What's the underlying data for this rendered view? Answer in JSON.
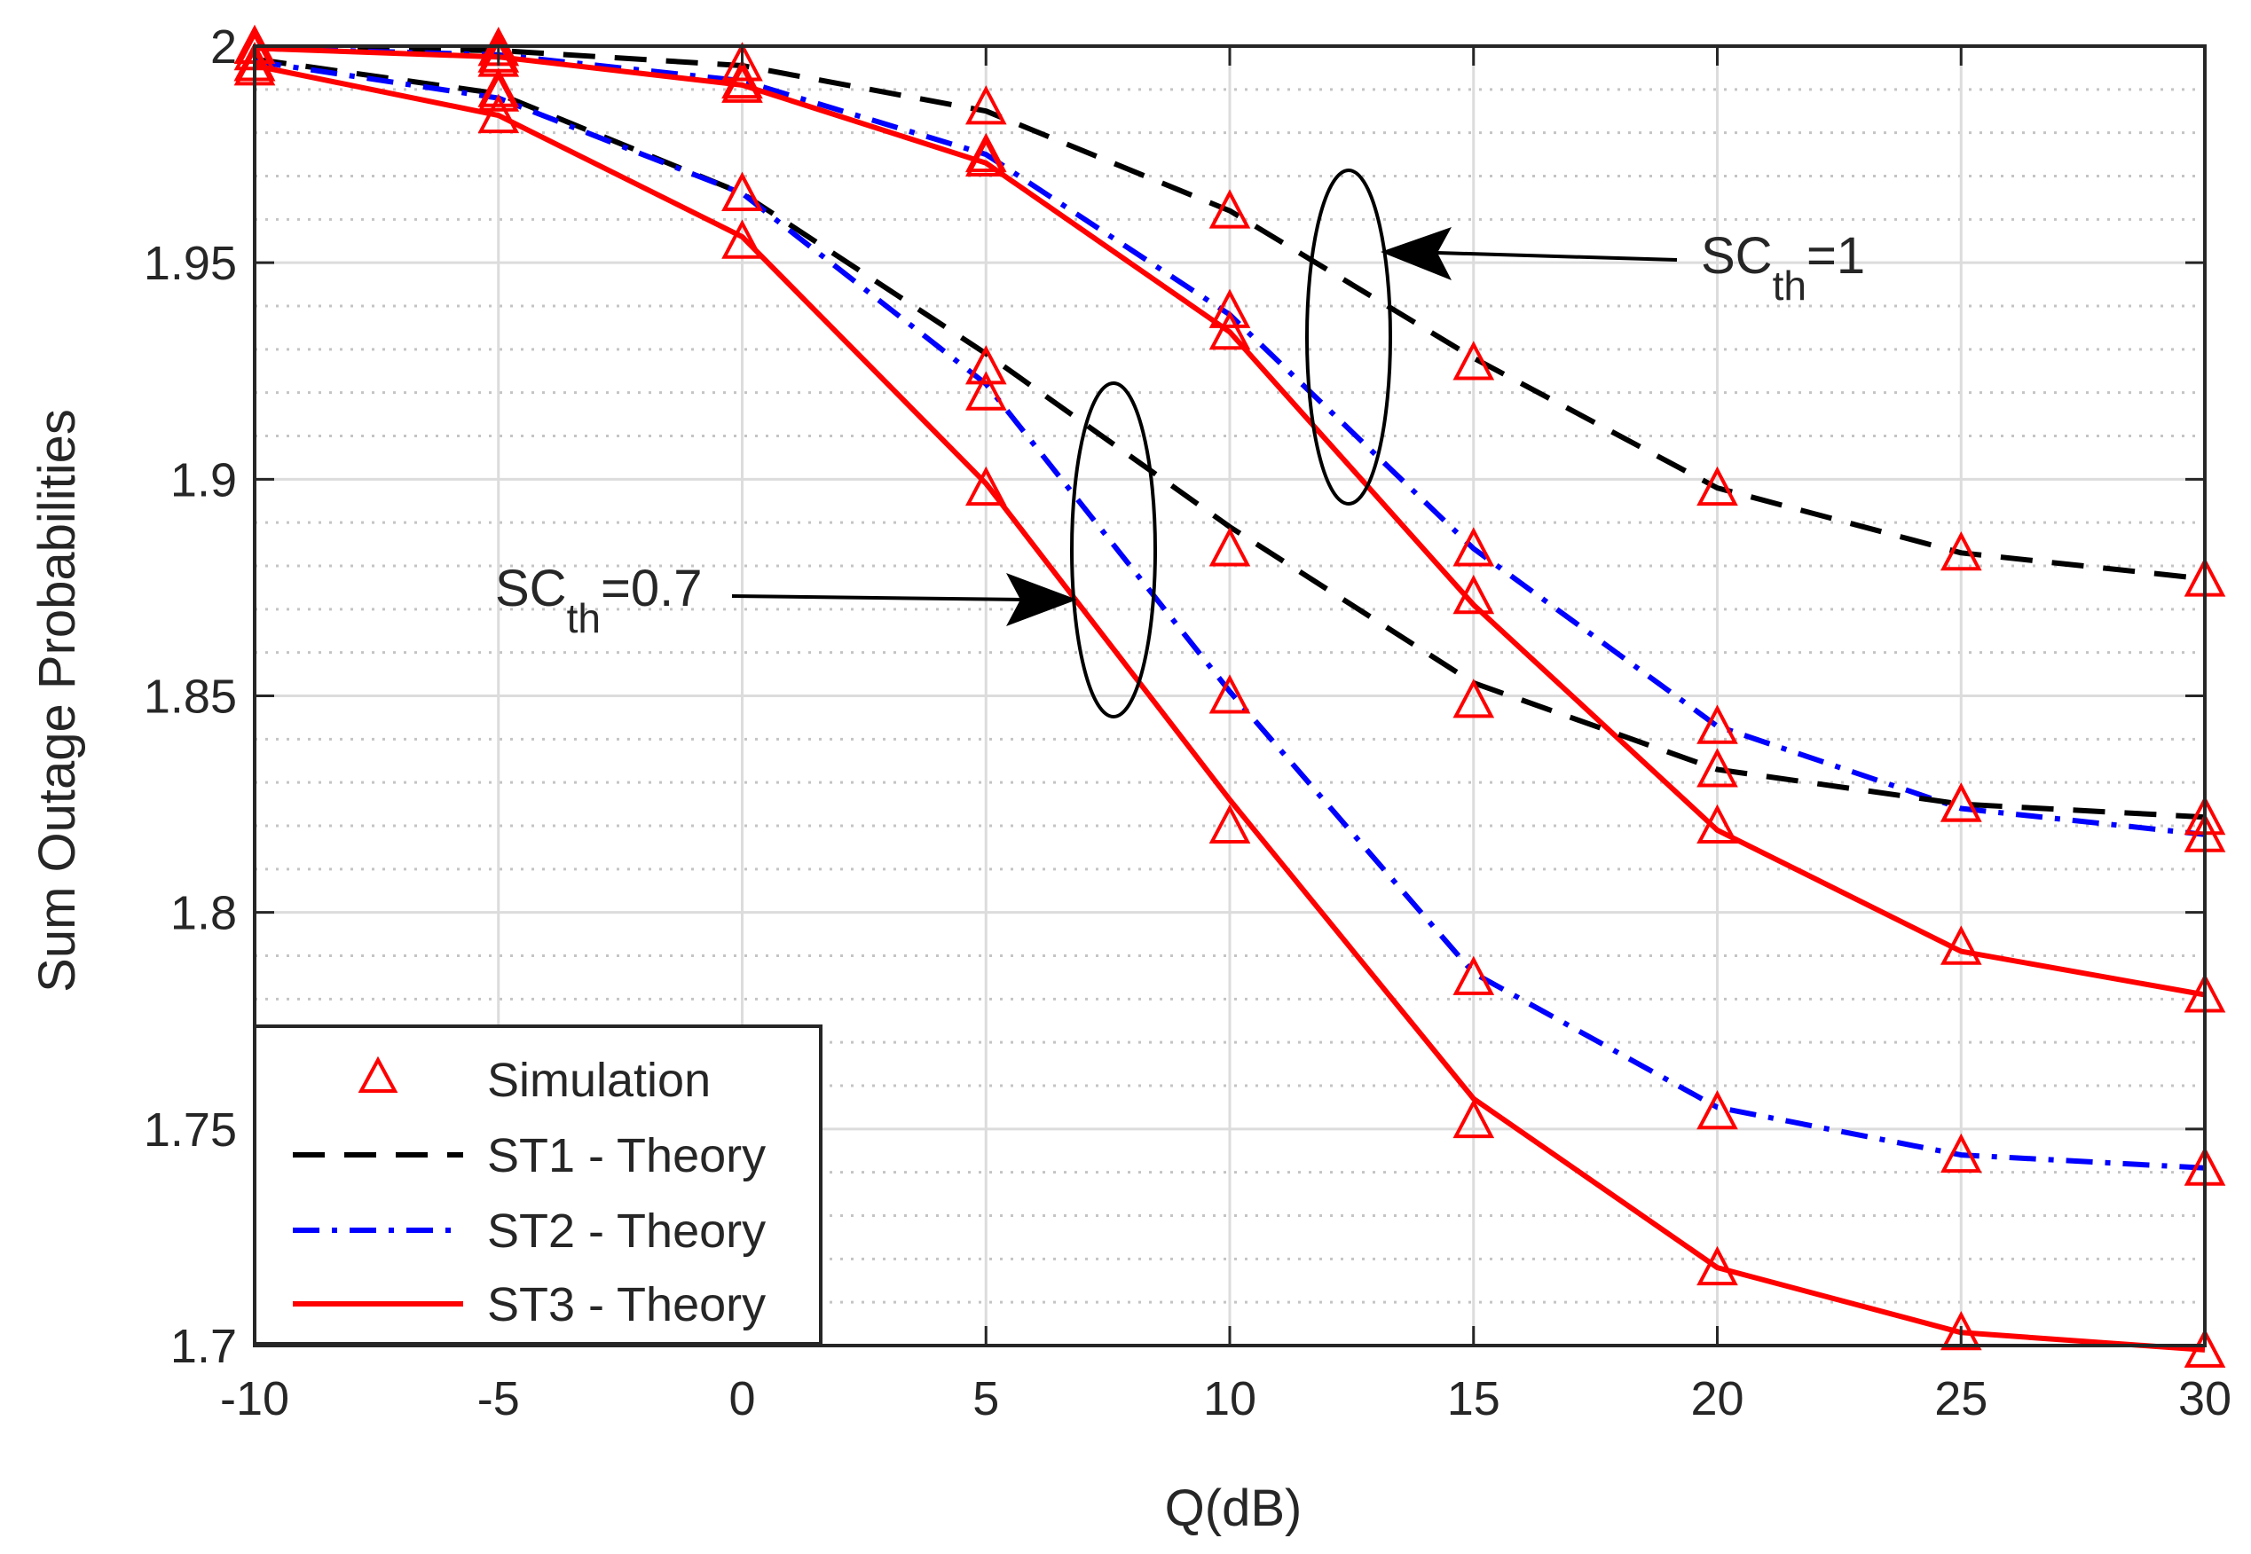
{
  "chart_data": {
    "type": "line",
    "title": "",
    "xlabel": "Q(dB)",
    "ylabel": "Sum Outage Probabilities",
    "xlim": [
      -10,
      30
    ],
    "ylim": [
      1.7,
      2.0
    ],
    "grid": true,
    "x": [
      -10,
      -5,
      0,
      5,
      10,
      15,
      20,
      25,
      30
    ],
    "x_tick_labels": [
      "-10",
      "-5",
      "0",
      "5",
      "10",
      "15",
      "20",
      "25",
      "30"
    ],
    "y_ticks": [
      1.7,
      1.75,
      1.8,
      1.85,
      1.9,
      1.95,
      2.0
    ],
    "y_tick_labels": [
      "1.7",
      "1.75",
      "1.8",
      "1.85",
      "1.9",
      "1.95",
      "2"
    ],
    "legend_position": "bottom-left",
    "legend": [
      {
        "key": "sim",
        "label": "Simulation",
        "style": "marker"
      },
      {
        "key": "st1",
        "label": "ST1 - Theory",
        "style": "dashed",
        "color": "#000000"
      },
      {
        "key": "st2",
        "label": "ST2 - Theory",
        "style": "dashdot",
        "color": "#0000ff"
      },
      {
        "key": "st3",
        "label": "ST3 - Theory",
        "style": "solid",
        "color": "#ff0000"
      }
    ],
    "series": [
      {
        "name": "ST1 - Theory",
        "group": "SCth=1",
        "style": "dashed",
        "color": "#000000",
        "values": [
          1.9995,
          1.999,
          1.9955,
          1.985,
          1.962,
          1.928,
          1.898,
          1.883,
          1.877
        ]
      },
      {
        "name": "ST2 - Theory",
        "group": "SCth=1",
        "style": "dashdot",
        "color": "#0000ff",
        "values": [
          1.9995,
          1.998,
          1.992,
          1.975,
          1.938,
          1.884,
          1.843,
          1.824,
          1.818
        ]
      },
      {
        "name": "ST3 - Theory",
        "group": "SCth=1",
        "style": "solid",
        "color": "#ff0000",
        "values": [
          1.9995,
          1.9975,
          1.991,
          1.973,
          1.934,
          1.871,
          1.819,
          1.791,
          1.781
        ]
      },
      {
        "name": "ST1 - Theory",
        "group": "SCth=0.7",
        "style": "dashed",
        "color": "#000000",
        "values": [
          1.997,
          1.989,
          1.966,
          1.929,
          1.889,
          1.853,
          1.833,
          1.825,
          1.822
        ]
      },
      {
        "name": "ST2 - Theory",
        "group": "SCth=0.7",
        "style": "dashdot",
        "color": "#0000ff",
        "values": [
          1.9965,
          1.988,
          1.966,
          1.922,
          1.851,
          1.786,
          1.755,
          1.744,
          1.741
        ]
      },
      {
        "name": "ST3 - Theory",
        "group": "SCth=0.7",
        "style": "solid",
        "color": "#ff0000",
        "values": [
          1.9955,
          1.984,
          1.956,
          1.899,
          1.826,
          1.757,
          1.718,
          1.703,
          1.699
        ]
      }
    ],
    "simulation": {
      "name": "Simulation",
      "color": "#ff0000",
      "marker": "triangle",
      "series": [
        {
          "of": "ST1 - Theory",
          "group": "SCth=1",
          "values": [
            2.0,
            1.9995,
            1.996,
            1.986,
            1.962,
            1.927,
            1.898,
            1.883,
            1.877
          ]
        },
        {
          "of": "ST2 - Theory",
          "group": "SCth=1",
          "values": [
            1.996,
            1.998,
            1.992,
            1.975,
            1.939,
            1.884,
            1.843,
            1.825,
            1.818
          ]
        },
        {
          "of": "ST3 - Theory",
          "group": "SCth=1",
          "values": [
            1.9985,
            1.997,
            1.991,
            1.974,
            1.934,
            1.873,
            1.833,
            1.792,
            1.781
          ]
        },
        {
          "of": "ST1 - Theory",
          "group": "SCth=0.7",
          "values": [
            1.996,
            1.99,
            1.966,
            1.926,
            1.884,
            1.849,
            1.82,
            1.825,
            1.822
          ]
        },
        {
          "of": "ST2 - Theory",
          "group": "SCth=0.7",
          "values": [
            1.996,
            1.989,
            1.966,
            1.92,
            1.85,
            1.785,
            1.754,
            1.744,
            1.741
          ]
        },
        {
          "of": "ST3 - Theory",
          "group": "SCth=0.7",
          "values": [
            1.995,
            1.984,
            1.955,
            1.898,
            1.82,
            1.752,
            1.718,
            1.703,
            1.699
          ]
        }
      ]
    },
    "annotations": [
      {
        "id": "sc1",
        "main": "SC",
        "sub": "th",
        "suffix": "=1",
        "target_x": 13,
        "target_y": 1.948
      },
      {
        "id": "sc07",
        "main": "SC",
        "sub": "th",
        "suffix": "=0.7",
        "target_x": 7,
        "target_y": 1.87
      }
    ]
  }
}
